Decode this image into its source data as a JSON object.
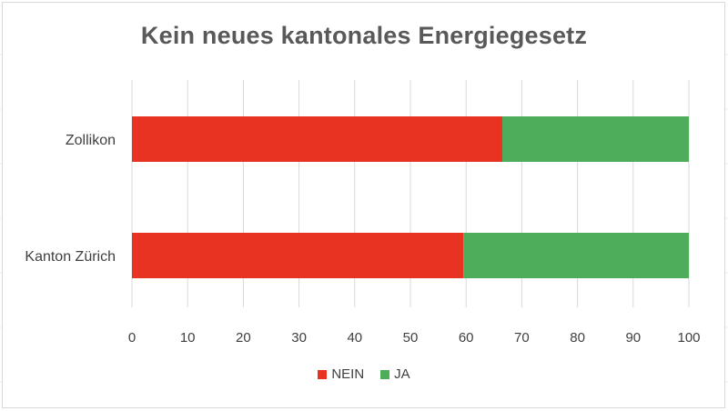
{
  "chart_data": {
    "type": "bar",
    "orientation": "horizontal",
    "stacked": true,
    "title": "Kein neues kantonales Energiegesetz",
    "categories": [
      "Zollikon",
      "Kanton Zürich"
    ],
    "series": [
      {
        "name": "NEIN",
        "color": "#e83323",
        "values": [
          66.5,
          59.5
        ]
      },
      {
        "name": "JA",
        "color": "#4ead5b",
        "values": [
          33.5,
          40.5
        ]
      }
    ],
    "xlim": [
      0,
      100
    ],
    "xticks": [
      "0",
      "10",
      "20",
      "30",
      "40",
      "50",
      "60",
      "70",
      "80",
      "90",
      "100"
    ],
    "grid": true,
    "legend_position": "bottom"
  }
}
